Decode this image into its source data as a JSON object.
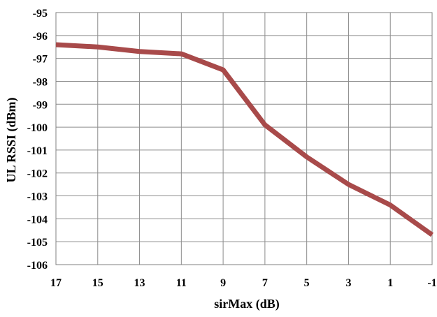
{
  "chart_data": {
    "type": "line",
    "title": "",
    "xlabel": "sirMax (dB)",
    "ylabel": "UL RSSI (dBm)",
    "x": [
      17,
      15,
      13,
      11,
      9,
      7,
      5,
      3,
      1,
      -1
    ],
    "x_tick_labels": [
      "17",
      "15",
      "13",
      "11",
      "9",
      "7",
      "5",
      "3",
      "1",
      "-1"
    ],
    "xlim": [
      17,
      -1
    ],
    "ylim": [
      -106,
      -95
    ],
    "y_ticks": [
      -95,
      -96,
      -97,
      -98,
      -99,
      -100,
      -101,
      -102,
      -103,
      -104,
      -105,
      -106
    ],
    "y_tick_labels": [
      "-95",
      "-96",
      "-97",
      "-98",
      "-99",
      "-100",
      "-101",
      "-102",
      "-103",
      "-104",
      "-105",
      "-106"
    ],
    "grid": true,
    "legend": "none",
    "series": [
      {
        "color": "#A84A4A",
        "values": [
          -96.4,
          -96.5,
          -96.7,
          -96.8,
          -97.5,
          -99.9,
          -101.3,
          -102.5,
          -103.4,
          -104.7
        ]
      }
    ]
  }
}
